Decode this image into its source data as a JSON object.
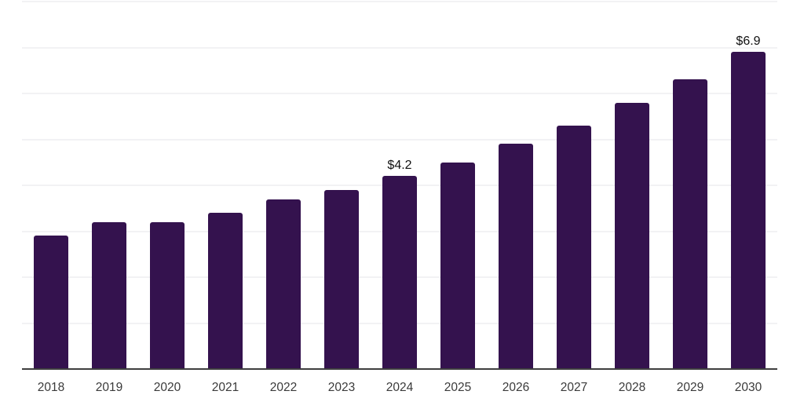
{
  "chart_data": {
    "type": "bar",
    "title": "",
    "xlabel": "",
    "ylabel": "",
    "categories": [
      "2018",
      "2019",
      "2020",
      "2021",
      "2022",
      "2023",
      "2024",
      "2025",
      "2026",
      "2027",
      "2028",
      "2029",
      "2030"
    ],
    "values": [
      2.9,
      3.2,
      3.2,
      3.4,
      3.7,
      3.9,
      4.2,
      4.5,
      4.9,
      5.3,
      5.8,
      6.3,
      6.9
    ],
    "data_labels": {
      "2024": "$4.2",
      "2030": "$6.9"
    },
    "ylim": [
      0,
      8
    ],
    "gridline_step": 1,
    "grid": true,
    "legend_position": "none",
    "colors": {
      "bar": "#34124e",
      "axis": "#3f3f3f",
      "gridline": "#f2f2f4",
      "tick_label": "#3a3a3a",
      "data_label": "#111111",
      "background": "#ffffff"
    }
  }
}
